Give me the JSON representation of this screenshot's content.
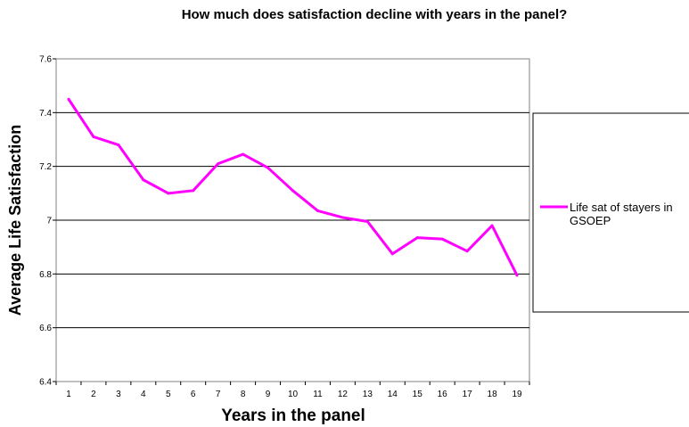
{
  "chart_data": {
    "type": "line",
    "title": "How much does satisfaction decline with years in the panel?",
    "xlabel": "Years in the panel",
    "ylabel": "Average Life Satisfaction",
    "x": [
      1,
      2,
      3,
      4,
      5,
      6,
      7,
      8,
      9,
      10,
      11,
      12,
      13,
      14,
      15,
      16,
      17,
      18,
      19
    ],
    "ylim": [
      6.4,
      7.6
    ],
    "yticks": [
      6.4,
      6.6,
      6.8,
      7,
      7.2,
      7.4,
      7.6
    ],
    "grid": "horizontal",
    "legend_position": "right",
    "series": [
      {
        "name": "Life sat of stayers in GSOEP",
        "legend_lines": [
          "Life sat of stayers in",
          "GSOEP"
        ],
        "color": "#FF00FF",
        "values": [
          7.45,
          7.31,
          7.28,
          7.15,
          7.1,
          7.11,
          7.21,
          7.245,
          7.195,
          7.11,
          7.035,
          7.01,
          6.995,
          6.875,
          6.935,
          6.93,
          6.885,
          6.98,
          6.795
        ]
      }
    ]
  }
}
